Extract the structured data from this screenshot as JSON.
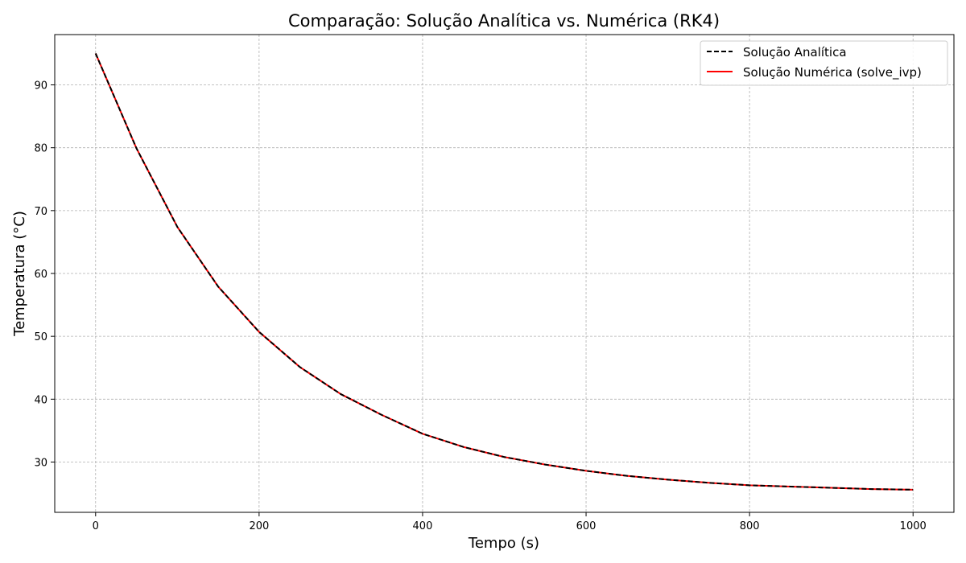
{
  "chart_data": {
    "type": "line",
    "title": "Comparação: Solução Analítica vs. Numérica (RK4)",
    "xlabel": "Tempo (s)",
    "ylabel": "Temperatura (°C)",
    "xlim": [
      -50,
      1050
    ],
    "ylim": [
      22,
      98
    ],
    "xticks": [
      0,
      200,
      400,
      600,
      800,
      1000
    ],
    "xtick_labels": [
      "0",
      "200",
      "400",
      "600",
      "800",
      "1000"
    ],
    "yticks": [
      30,
      40,
      50,
      60,
      70,
      80,
      90
    ],
    "ytick_labels": [
      "30",
      "40",
      "50",
      "60",
      "70",
      "80",
      "90"
    ],
    "grid": true,
    "legend_position": "top-right",
    "x": [
      0,
      50,
      100,
      150,
      200,
      250,
      300,
      350,
      400,
      450,
      500,
      550,
      600,
      650,
      700,
      750,
      800,
      850,
      900,
      950,
      1000
    ],
    "series": [
      {
        "name": "Solução Analítica",
        "color": "#000000",
        "style": "dashed",
        "values": [
          95.0,
          79.9,
          67.4,
          57.9,
          50.7,
          45.1,
          40.8,
          37.5,
          34.5,
          32.4,
          30.8,
          29.6,
          28.6,
          27.8,
          27.2,
          26.7,
          26.3,
          26.1,
          25.9,
          25.7,
          25.6
        ]
      },
      {
        "name": "Solução Numérica (solve_ivp)",
        "color": "#ff0000",
        "style": "solid",
        "values": [
          95.0,
          79.9,
          67.4,
          57.9,
          50.7,
          45.1,
          40.8,
          37.5,
          34.5,
          32.4,
          30.8,
          29.6,
          28.6,
          27.8,
          27.2,
          26.7,
          26.3,
          26.1,
          25.9,
          25.7,
          25.6
        ]
      }
    ]
  }
}
